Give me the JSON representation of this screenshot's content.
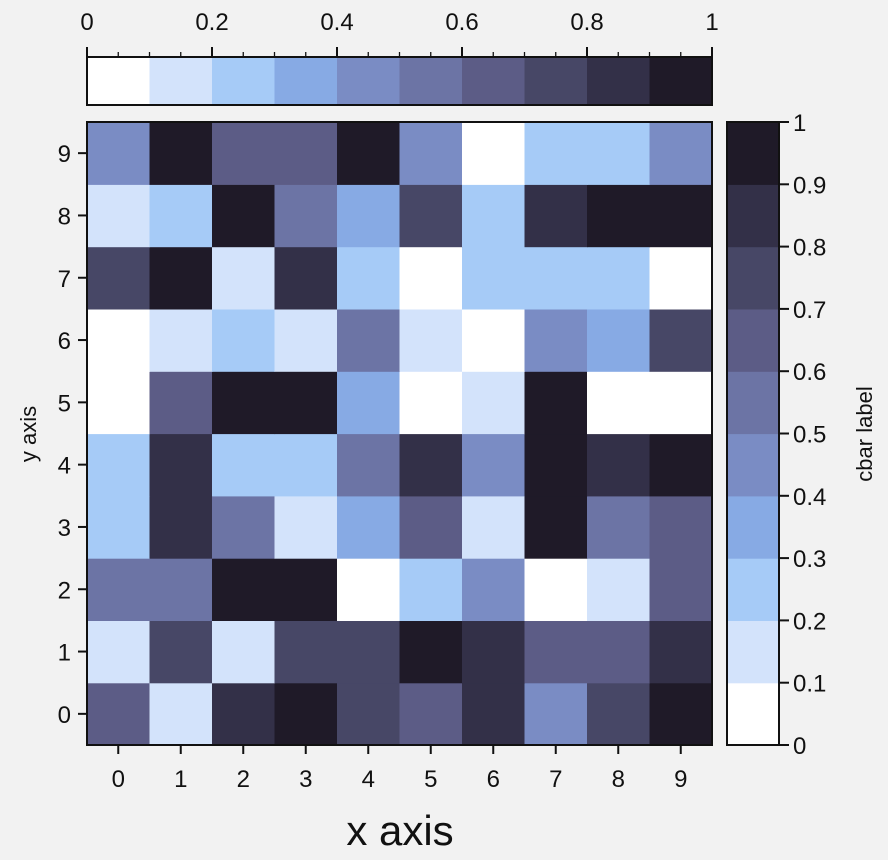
{
  "chart_data": {
    "type": "heatmap",
    "xlabel": "x axis",
    "ylabel": "y axis",
    "x_categories": [
      "0",
      "1",
      "2",
      "3",
      "4",
      "5",
      "6",
      "7",
      "8",
      "9"
    ],
    "y_categories": [
      "0",
      "1",
      "2",
      "3",
      "4",
      "5",
      "6",
      "7",
      "8",
      "9"
    ],
    "values_by_row_bottom_to_top": [
      [
        0.65,
        0.15,
        0.85,
        0.95,
        0.75,
        0.65,
        0.85,
        0.45,
        0.75,
        0.95
      ],
      [
        0.15,
        0.75,
        0.15,
        0.75,
        0.75,
        0.95,
        0.85,
        0.65,
        0.65,
        0.85
      ],
      [
        0.55,
        0.55,
        0.95,
        0.95,
        0.05,
        0.25,
        0.45,
        0.05,
        0.15,
        0.65
      ],
      [
        0.25,
        0.85,
        0.55,
        0.15,
        0.35,
        0.65,
        0.15,
        0.95,
        0.55,
        0.65
      ],
      [
        0.25,
        0.85,
        0.25,
        0.25,
        0.55,
        0.85,
        0.45,
        0.95,
        0.85,
        0.95
      ],
      [
        0.05,
        0.65,
        0.95,
        0.95,
        0.35,
        0.05,
        0.15,
        0.95,
        0.05,
        0.05
      ],
      [
        0.05,
        0.15,
        0.25,
        0.15,
        0.55,
        0.15,
        0.05,
        0.45,
        0.35,
        0.75
      ],
      [
        0.75,
        0.95,
        0.15,
        0.85,
        0.25,
        0.05,
        0.25,
        0.25,
        0.25,
        0.05
      ],
      [
        0.15,
        0.25,
        0.95,
        0.55,
        0.35,
        0.75,
        0.25,
        0.85,
        0.95,
        0.95
      ],
      [
        0.45,
        0.95,
        0.65,
        0.65,
        0.95,
        0.45,
        0.05,
        0.25,
        0.25,
        0.45
      ]
    ],
    "vmin": 0,
    "vmax": 1,
    "colormap": [
      "#ffffff",
      "#d3e3fb",
      "#a6cbf7",
      "#87aae4",
      "#7a8cc4",
      "#6c74a5",
      "#5c5c86",
      "#474766",
      "#333048",
      "#1f1a28"
    ],
    "colorbar_top": {
      "ticks": [
        "0",
        "0.2",
        "0.4",
        "0.6",
        "0.8",
        "1"
      ]
    },
    "colorbar_right": {
      "label": "cbar label",
      "ticks": [
        "0",
        "0.1",
        "0.2",
        "0.3",
        "0.4",
        "0.5",
        "0.6",
        "0.7",
        "0.8",
        "0.9",
        "1"
      ]
    }
  }
}
